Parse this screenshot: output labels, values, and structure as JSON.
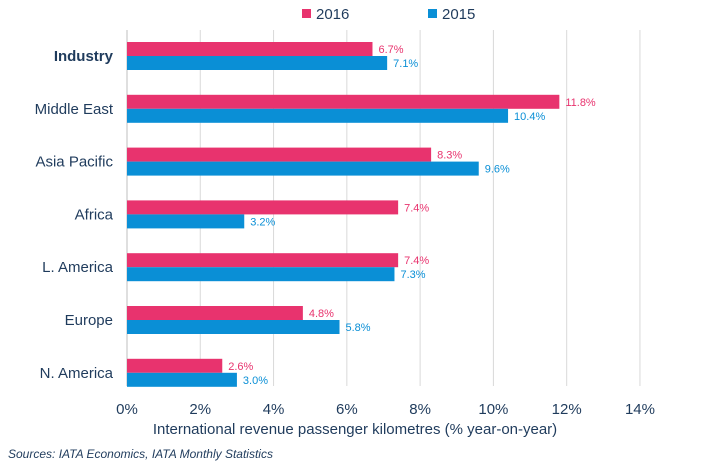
{
  "chart_data": {
    "type": "bar",
    "orientation": "horizontal",
    "categories": [
      "Industry",
      "Middle East",
      "Asia Pacific",
      "Africa",
      "L. America",
      "Europe",
      "N. America"
    ],
    "series": [
      {
        "name": "2016",
        "color": "#e8336e",
        "values": [
          6.7,
          11.8,
          8.3,
          7.4,
          7.4,
          4.8,
          2.6
        ],
        "labels": [
          "6.7%",
          "11.8%",
          "8.3%",
          "7.4%",
          "7.4%",
          "4.8%",
          "2.6%"
        ]
      },
      {
        "name": "2015",
        "color": "#0a8fd6",
        "values": [
          7.1,
          10.4,
          9.6,
          3.2,
          7.3,
          5.8,
          3.0
        ],
        "labels": [
          "7.1%",
          "10.4%",
          "9.6%",
          "3.2%",
          "7.3%",
          "5.8%",
          "3.0%"
        ]
      }
    ],
    "xlim": [
      0,
      14
    ],
    "xticks": [
      0,
      2,
      4,
      6,
      8,
      10,
      12,
      14
    ],
    "xtick_labels": [
      "0%",
      "2%",
      "4%",
      "6%",
      "8%",
      "10%",
      "12%",
      "14%"
    ],
    "xlabel": "International revenue passenger kilometres (% year-on-year)",
    "ylabel": "",
    "grid": "vertical",
    "legend": "top",
    "bold_category": "Industry"
  },
  "source": "Sources: IATA Economics, IATA Monthly Statistics"
}
